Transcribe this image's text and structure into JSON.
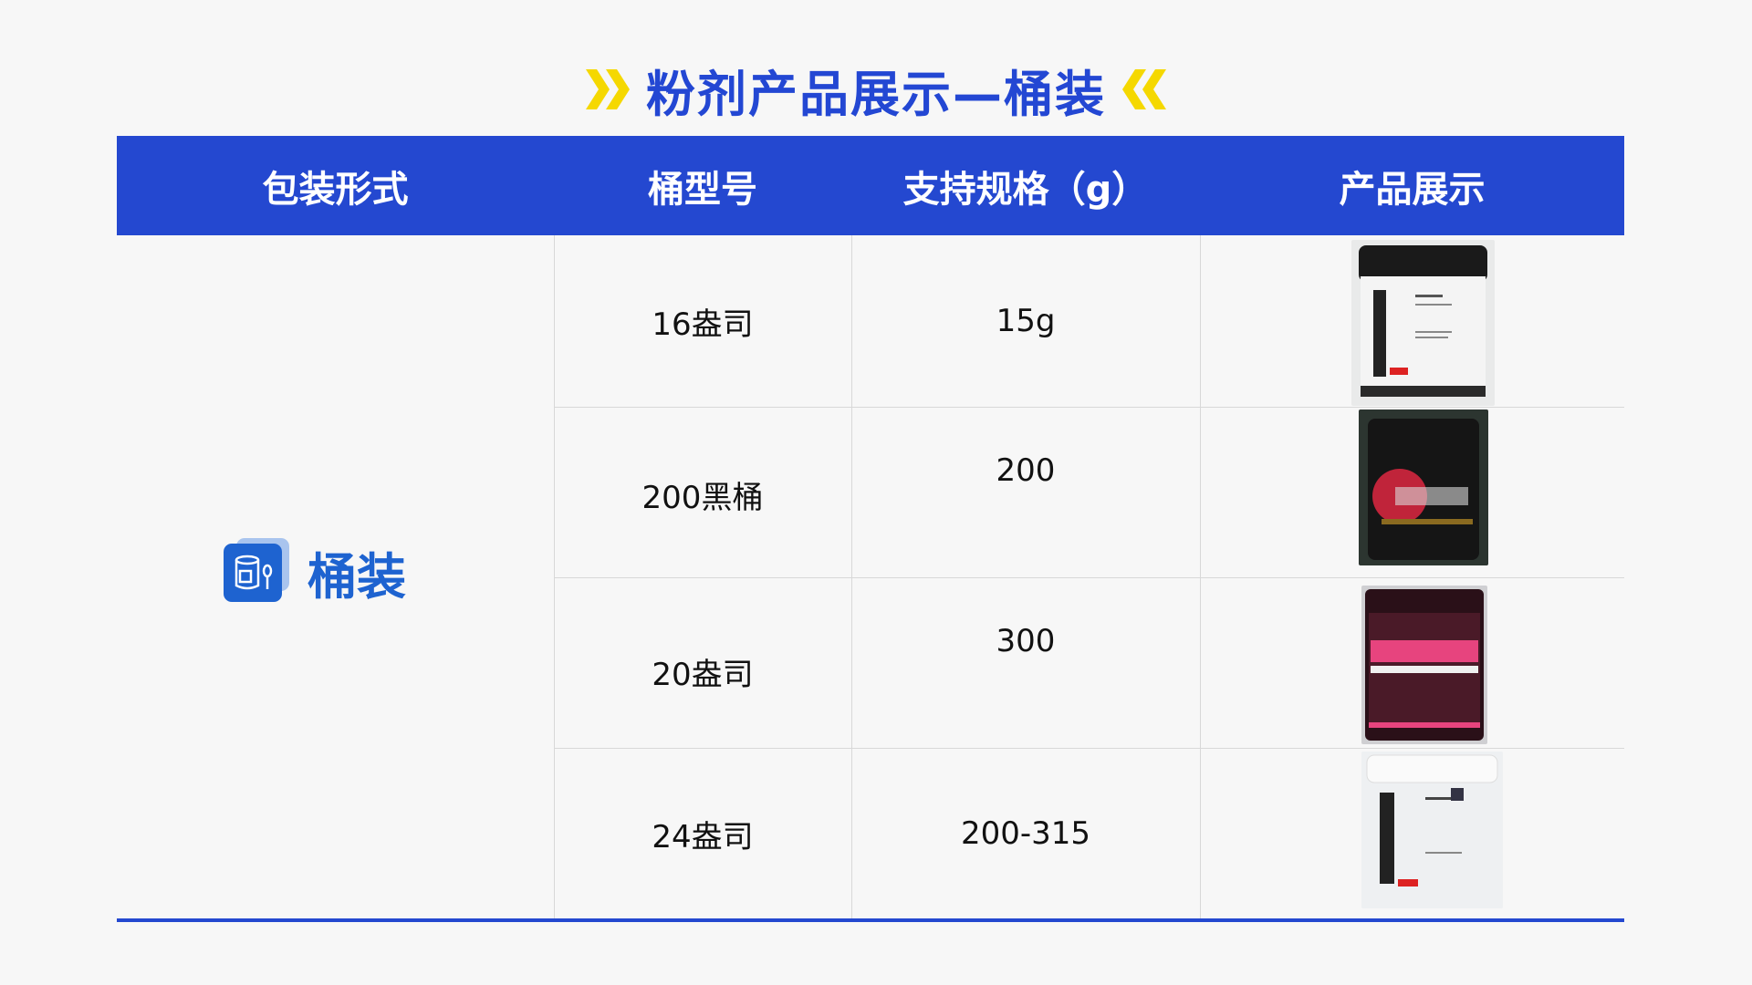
{
  "title": "粉剂产品展示—桶装",
  "colors": {
    "primary": "#2448d0",
    "accent": "#f5d800",
    "icon_blue": "#1e63d0"
  },
  "table": {
    "headers": [
      "包装形式",
      "桶型号",
      "支持规格（g）",
      "产品展示"
    ],
    "packaging": {
      "label": "桶装",
      "icon": "jar-spoon-icon"
    },
    "rows": [
      {
        "model": "16盎司",
        "spec": "15g",
        "product_image": "electrolyte-white-jar"
      },
      {
        "model": "200黑桶",
        "spec": "200",
        "product_image": "red-black-jar"
      },
      {
        "model": "20盎司",
        "spec": "300",
        "product_image": "98k-pre-workout-jar"
      },
      {
        "model": "24盎司",
        "spec": "200-315",
        "product_image": "glutamine-peptide-white-jar"
      }
    ]
  }
}
